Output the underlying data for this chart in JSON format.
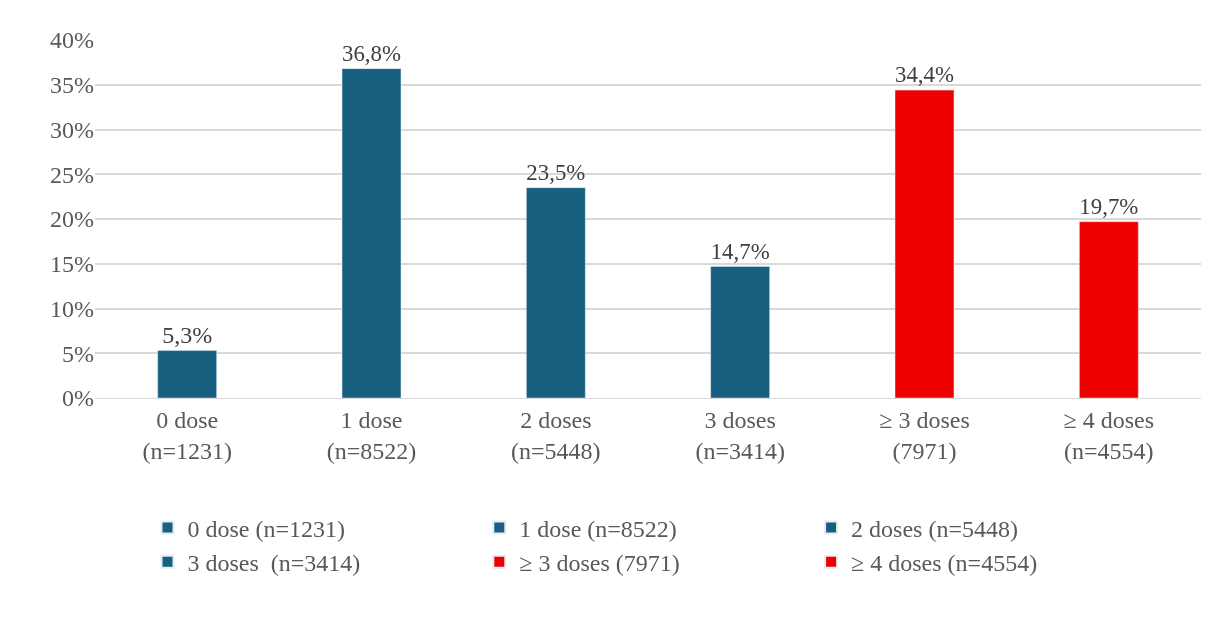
{
  "chart_data": {
    "type": "bar",
    "categories": [
      "0 dose (n=1231)",
      "1 dose (n=8522)",
      "2 doses (n=5448)",
      "3 doses (n=3414)",
      "≥ 3 doses (7971)",
      "≥ 4 doses (n=4554)"
    ],
    "series": [
      {
        "name": "0 dose (n=1231)",
        "color": "#17607f",
        "values": [
          5.3,
          null,
          null,
          null,
          null,
          null
        ],
        "value_labels": [
          "5,3%",
          null,
          null,
          null,
          null,
          null
        ]
      },
      {
        "name": "1 dose (n=8522)",
        "color": "#17607f",
        "values": [
          null,
          36.8,
          null,
          null,
          null,
          null
        ],
        "value_labels": [
          null,
          "36,8%",
          null,
          null,
          null,
          null
        ]
      },
      {
        "name": "2 doses (n=5448)",
        "color": "#17607f",
        "values": [
          null,
          null,
          23.5,
          null,
          null,
          null
        ],
        "value_labels": [
          null,
          null,
          "23,5%",
          null,
          null,
          null
        ]
      },
      {
        "name": "3 doses  (n=3414)",
        "color": "#17607f",
        "values": [
          null,
          null,
          null,
          14.7,
          null,
          null
        ],
        "value_labels": [
          null,
          null,
          null,
          "14,7%",
          null,
          null
        ]
      },
      {
        "name": "≥ 3 doses (7971)",
        "color": "#ee0000",
        "values": [
          null,
          null,
          null,
          null,
          34.4,
          null
        ],
        "value_labels": [
          null,
          null,
          null,
          null,
          "34,4%",
          null
        ]
      },
      {
        "name": "≥ 4 doses (n=4554)",
        "color": "#ee0000",
        "values": [
          null,
          null,
          null,
          null,
          null,
          19.7
        ],
        "value_labels": [
          null,
          null,
          null,
          null,
          null,
          "19,7%"
        ]
      }
    ],
    "ylim": [
      0,
      40
    ],
    "yticks": [
      {
        "value": 0,
        "label": "0%"
      },
      {
        "value": 5,
        "label": "5%"
      },
      {
        "value": 10,
        "label": "10%"
      },
      {
        "value": 15,
        "label": "15%"
      },
      {
        "value": 20,
        "label": "20%"
      },
      {
        "value": 25,
        "label": "25%"
      },
      {
        "value": 30,
        "label": "30%"
      },
      {
        "value": 35,
        "label": "35%"
      },
      {
        "value": 40,
        "label": "40%"
      }
    ],
    "grid": "y",
    "legend": "bottom"
  }
}
